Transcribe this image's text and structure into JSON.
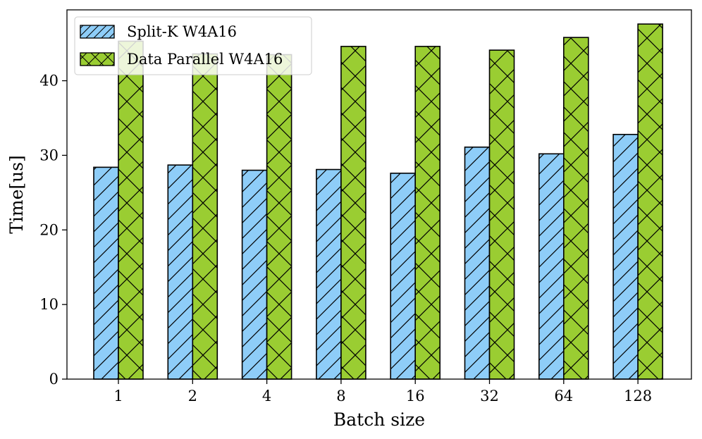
{
  "chart_data": {
    "type": "bar",
    "title": "",
    "xlabel": "Batch size",
    "ylabel": "Time[us]",
    "ylim": [
      0,
      49.5
    ],
    "yticks": [
      0,
      10,
      20,
      30,
      40
    ],
    "categories": [
      "1",
      "2",
      "4",
      "8",
      "16",
      "32",
      "64",
      "128"
    ],
    "grid": false,
    "legend_position": "top-left",
    "series": [
      {
        "name": "Split-K W4A16",
        "values": [
          28.4,
          28.7,
          28.0,
          28.1,
          27.6,
          31.1,
          30.2,
          32.8
        ],
        "color": "#8ecdf8",
        "hatch": "diagonal"
      },
      {
        "name": "Data Parallel W4A16",
        "values": [
          45.3,
          43.6,
          43.5,
          44.6,
          44.6,
          44.1,
          45.8,
          47.6
        ],
        "color": "#9acd32",
        "hatch": "cross"
      }
    ]
  }
}
